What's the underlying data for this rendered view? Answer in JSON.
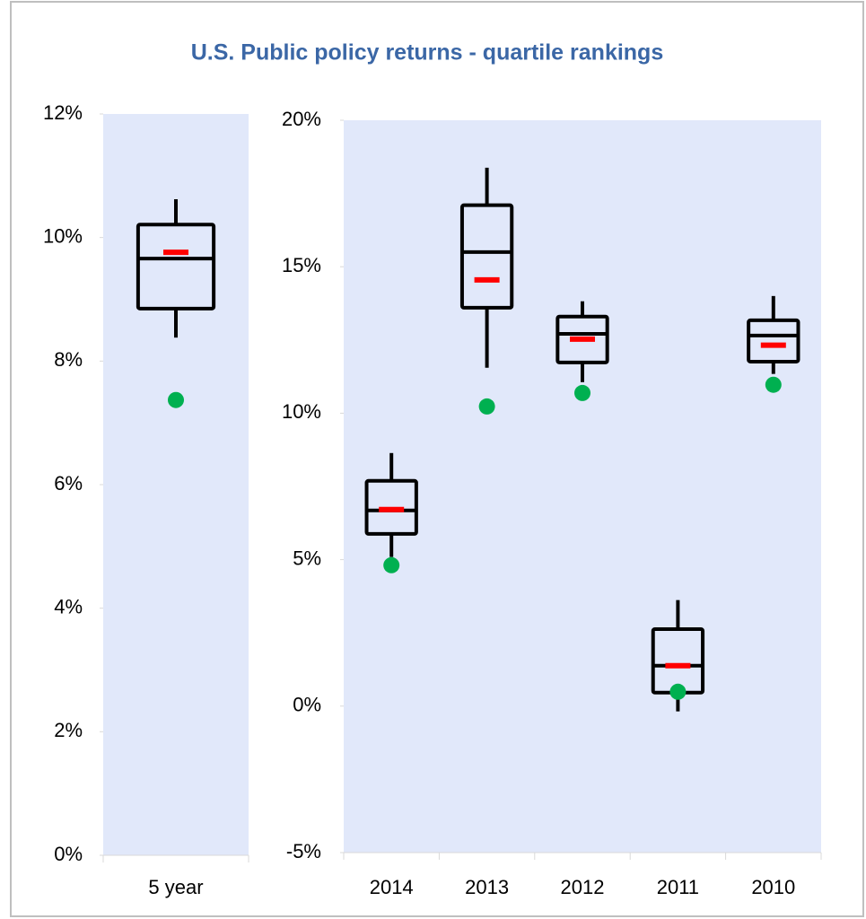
{
  "chart_data": [
    {
      "type": "box",
      "title": "U.S. Public policy returns - quartile rankings",
      "categories": [
        "5 year"
      ],
      "ylim": [
        0,
        12
      ],
      "yticks": [
        {
          "value": 0,
          "label": "0%"
        },
        {
          "value": 2,
          "label": "2%"
        },
        {
          "value": 4,
          "label": "4%"
        },
        {
          "value": 6,
          "label": "6%"
        },
        {
          "value": 8,
          "label": "8%"
        },
        {
          "value": 10,
          "label": "10%"
        },
        {
          "value": 12,
          "label": "12%"
        }
      ],
      "box_color": "#000000",
      "mean_color": "#ff0000",
      "point_color": "#00b050",
      "background": "#e1e8fa",
      "boxes": [
        {
          "whisker_low": 8.38,
          "q1": 8.85,
          "median": 9.66,
          "q3": 10.21,
          "whisker_high": 10.62,
          "mean": 9.76,
          "point": 7.37
        }
      ]
    },
    {
      "type": "box",
      "categories": [
        "2014",
        "2013",
        "2012",
        "2011",
        "2010"
      ],
      "ylim": [
        -5,
        20
      ],
      "yticks": [
        {
          "value": -5,
          "label": "-5%"
        },
        {
          "value": 0,
          "label": "0%"
        },
        {
          "value": 5,
          "label": "5%"
        },
        {
          "value": 10,
          "label": "10%"
        },
        {
          "value": 15,
          "label": "15%"
        },
        {
          "value": 20,
          "label": "20%"
        }
      ],
      "box_color": "#000000",
      "mean_color": "#ff0000",
      "point_color": "#00b050",
      "background": "#e1e8fa",
      "boxes": [
        {
          "whisker_low": 5.09,
          "q1": 5.88,
          "median": 6.68,
          "q3": 7.69,
          "whisker_high": 8.64,
          "mean": 6.71,
          "point": 4.81
        },
        {
          "whisker_low": 11.55,
          "q1": 13.6,
          "median": 15.5,
          "q3": 17.1,
          "whisker_high": 18.38,
          "mean": 14.55,
          "point": 10.23
        },
        {
          "whisker_low": 11.06,
          "q1": 11.73,
          "median": 12.71,
          "q3": 13.3,
          "whisker_high": 13.82,
          "mean": 12.53,
          "point": 10.69
        },
        {
          "whisker_low": -0.18,
          "q1": 0.46,
          "median": 1.38,
          "q3": 2.63,
          "whisker_high": 3.62,
          "mean": 1.38,
          "point": 0.49
        },
        {
          "whisker_low": 11.34,
          "q1": 11.76,
          "median": 12.65,
          "q3": 13.17,
          "whisker_high": 14.0,
          "mean": 12.32,
          "point": 10.97
        }
      ]
    }
  ]
}
